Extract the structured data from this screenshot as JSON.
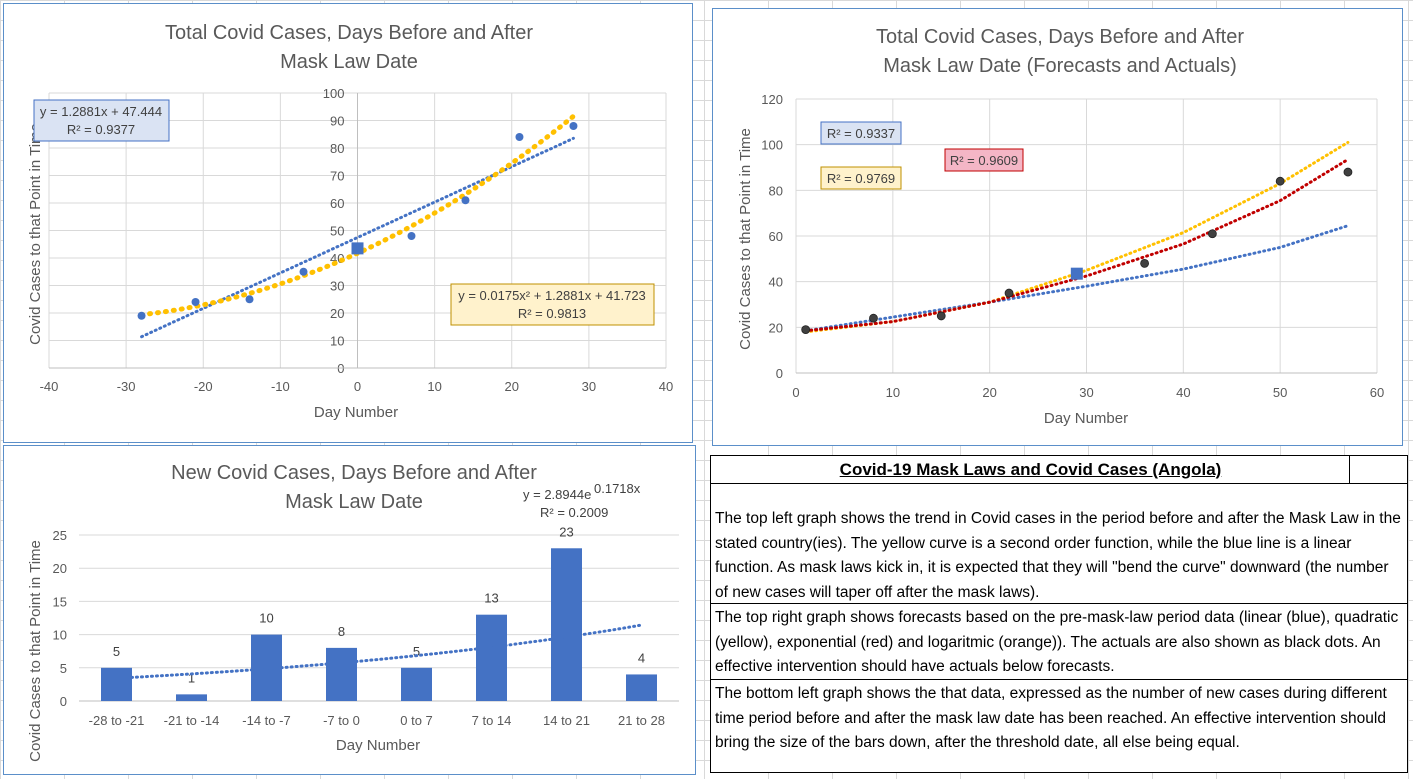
{
  "chart_data": [
    {
      "type": "scatter",
      "title": "Total Covid Cases, Days Before and After Mask Law Date",
      "title_lines": [
        "Total Covid Cases, Days Before and After",
        "Mask Law Date"
      ],
      "xlabel": "Day Number",
      "ylabel": "Covid Cases to that Point in Time",
      "xlim": [
        -40,
        40
      ],
      "ylim": [
        0,
        100
      ],
      "xticks": [
        "-40",
        "-30",
        "-20",
        "-10",
        "0",
        "10",
        "20",
        "30",
        "40"
      ],
      "yticks": [
        "0",
        "10",
        "20",
        "30",
        "40",
        "50",
        "60",
        "70",
        "80",
        "90",
        "100"
      ],
      "grid": true,
      "series": [
        {
          "x": [
            -28,
            -21,
            -14,
            -7,
            7,
            14,
            21,
            28
          ],
          "y": [
            19,
            24,
            25,
            35,
            48,
            61,
            84,
            88
          ],
          "color": "#4472c4",
          "marker": "circle"
        },
        {
          "x": [
            0
          ],
          "y": [
            43.5
          ],
          "color": "#4472c4",
          "marker": "square"
        }
      ],
      "trendlines": [
        {
          "kind": "linear",
          "a": 1.2881,
          "b": 47.444,
          "x_range": [
            -28,
            28
          ],
          "color": "#4472c4"
        },
        {
          "kind": "poly2",
          "a2": 0.0175,
          "a1": 1.2881,
          "a0": 41.723,
          "x_range": [
            -28,
            28
          ],
          "color": "#ffc000"
        }
      ],
      "annotations": [
        {
          "lines": [
            "y = 1.2881x + 47.444",
            "R² = 0.9377"
          ],
          "bg": "#dae3f3",
          "border": "#4472c4"
        },
        {
          "lines": [
            "y = 0.0175x² + 1.2881x + 41.723",
            "R² = 0.9813"
          ],
          "bg": "#fff2cc",
          "border": "#bf9000"
        }
      ]
    },
    {
      "type": "scatter",
      "title": "Total Covid Cases, Days Before and After Mask Law Date (Forecasts and Actuals)",
      "title_lines": [
        "Total Covid Cases, Days Before and After",
        "Mask Law Date (Forecasts and Actuals)"
      ],
      "xlabel": "Day Number",
      "ylabel": "Covid Cases to that Point in Time",
      "xlim": [
        0,
        60
      ],
      "ylim": [
        0,
        120
      ],
      "xticks": [
        "0",
        "10",
        "20",
        "30",
        "40",
        "50",
        "60"
      ],
      "yticks": [
        "0",
        "20",
        "40",
        "60",
        "80",
        "100",
        "120"
      ],
      "grid": true,
      "series": [
        {
          "x": [
            1,
            8,
            15,
            22,
            29,
            36,
            43,
            50,
            57
          ],
          "y": [
            19,
            24,
            25,
            35,
            43,
            48,
            61,
            84,
            88
          ],
          "color": "#404040",
          "marker": "circle"
        },
        {
          "x": [
            29
          ],
          "y": [
            43.5
          ],
          "color": "#4472c4",
          "marker": "square"
        }
      ],
      "trendlines": [
        {
          "kind": "points",
          "x": [
            1,
            10,
            20,
            30,
            40,
            50,
            57
          ],
          "y": [
            18.5,
            24.5,
            31,
            38,
            45.5,
            55,
            64.5
          ],
          "color": "#4472c4"
        },
        {
          "kind": "points",
          "x": [
            1,
            10,
            20,
            30,
            40,
            50,
            57
          ],
          "y": [
            18,
            22.5,
            31,
            45,
            61.5,
            83,
            101
          ],
          "color": "#ffc000"
        },
        {
          "kind": "points",
          "x": [
            1,
            10,
            20,
            30,
            40,
            50,
            57
          ],
          "y": [
            18.5,
            22.5,
            31,
            42.5,
            56.5,
            75.5,
            93.5
          ],
          "color": "#c00000"
        }
      ],
      "annotations": [
        {
          "lines": [
            "R² = 0.9337"
          ],
          "bg": "#dae3f3",
          "border": "#4472c4"
        },
        {
          "lines": [
            "R² = 0.9769"
          ],
          "bg": "#fff2cc",
          "border": "#bf9000"
        },
        {
          "lines": [
            "R² = 0.9609"
          ],
          "bg": "#f4b6c6",
          "border": "#c00000"
        }
      ]
    },
    {
      "type": "bar",
      "title": "New Covid Cases, Days Before and After Mask Law Date",
      "title_lines": [
        "New Covid Cases, Days Before and After",
        "Mask Law Date"
      ],
      "xlabel": "Day Number",
      "ylabel": "Covid Cases to that Point in Time",
      "categories": [
        "-28 to -21",
        "-21 to -14",
        "-14 to -7",
        "-7 to 0",
        "0 to 7",
        "7 to 14",
        "14 to 21",
        "21 to 28"
      ],
      "values": [
        5,
        1,
        10,
        8,
        5,
        13,
        23,
        4
      ],
      "data_labels": [
        "5",
        "1",
        "10",
        "8",
        "5",
        "13",
        "23",
        "4"
      ],
      "ylim": [
        0,
        25
      ],
      "yticks": [
        "0",
        "5",
        "10",
        "15",
        "20",
        "25"
      ],
      "grid": true,
      "bar_color": "#4472c4",
      "trendline": {
        "kind": "exponential",
        "a": 2.8944,
        "k": 0.1718,
        "color": "#4472c4"
      },
      "annotation": {
        "lines": [
          "y = 2.8944e",
          "0.1718x",
          "R² = 0.2009"
        ]
      }
    }
  ],
  "notes": {
    "heading": "Covid-19 Mask Laws and Covid Cases (Angola)",
    "paragraphs": [
      "The top left graph shows the trend in Covid cases in the period before and after the Mask Law in the stated country(ies).  The yellow curve is a second order function, while the blue line is a linear function.  As mask laws kick in, it is expected that they will \"bend the curve\" downward (the number of new cases will taper off after the mask laws).",
      "The top right graph shows forecasts based on the pre-mask-law period data (linear (blue), quadratic (yellow), exponential (red) and logaritmic (orange)).  The actuals are also shown as black dots.  An effective intervention should have actuals below forecasts.",
      "The bottom left graph shows the that data, expressed as the number of new cases during different time period before and after the mask law date has been reached.  An effective intervention should bring the size of the bars down, after the threshold date, all else being equal."
    ]
  }
}
